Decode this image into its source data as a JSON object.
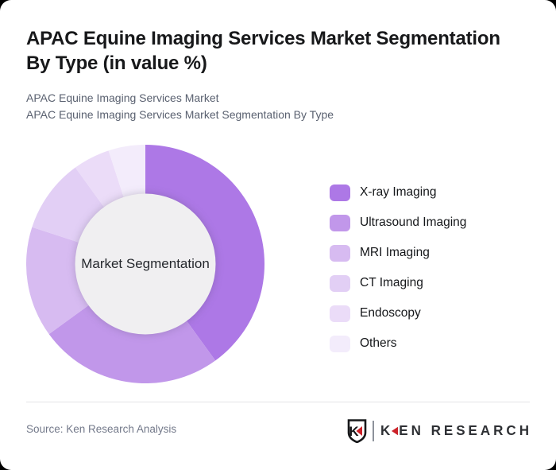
{
  "header": {
    "title_lines": [
      "APAC Equine Imaging Services Market Segmentation",
      "By Type (in value %)"
    ],
    "subtitle_line1": "APAC Equine Imaging Services Market",
    "subtitle_line2": "APAC Equine Imaging Services Market Segmentation By Type"
  },
  "chart": {
    "center_label": "Market Segmentation"
  },
  "legend": {
    "items": [
      {
        "label": "X-ray Imaging",
        "color": "#ad78e6"
      },
      {
        "label": "Ultrasound Imaging",
        "color": "#c197ea"
      },
      {
        "label": "MRI Imaging",
        "color": "#d7bbf1"
      },
      {
        "label": "CT Imaging",
        "color": "#e2cff5"
      },
      {
        "label": "Endoscopy",
        "color": "#ebdcf8"
      },
      {
        "label": "Others",
        "color": "#f3ecfb"
      }
    ]
  },
  "footer": {
    "source": "Source: Ken Research Analysis",
    "logo": {
      "emblem_letter": "K",
      "brand_first_letter": "K",
      "brand_rest": "EN RESEARCH",
      "brand_full": "KEN RESEARCH",
      "accent_color": "#cc2229"
    }
  },
  "chart_data": {
    "type": "pie",
    "subtype": "donut",
    "title": "APAC Equine Imaging Services Market Segmentation By Type (in value %)",
    "center_label": "Market Segmentation",
    "categories": [
      "X-ray Imaging",
      "Ultrasound Imaging",
      "MRI Imaging",
      "CT Imaging",
      "Endoscopy",
      "Others"
    ],
    "values": [
      40,
      25,
      15,
      10,
      5,
      5
    ],
    "unit": "%",
    "colors": [
      "#ad78e6",
      "#c197ea",
      "#d7bbf1",
      "#e2cff5",
      "#ebdcf8",
      "#f3ecfb"
    ],
    "start_angle_deg": 0,
    "direction": "clockwise",
    "inner_radius_ratio": 0.59,
    "hole_color": "#f0eff1",
    "legend_position": "right",
    "data_labels": false
  }
}
